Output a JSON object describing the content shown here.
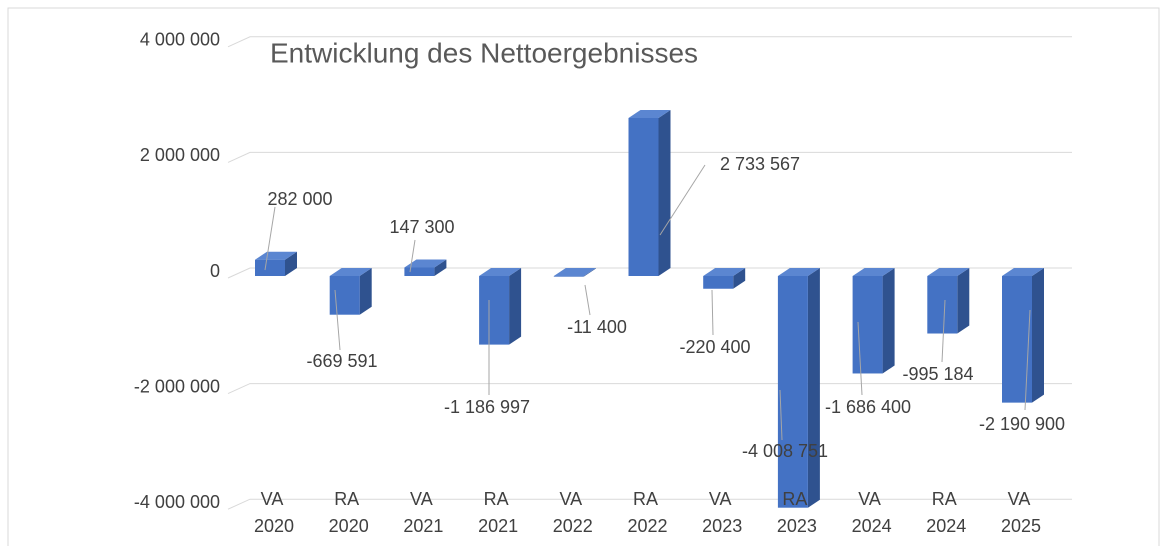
{
  "chart_data": {
    "type": "bar3d",
    "title": "Entwicklung des Nettoergebnisses",
    "categories": [
      "VA 2020",
      "RA 2020",
      "VA 2021",
      "RA 2021",
      "VA 2022",
      "RA 2022",
      "VA 2023",
      "RA 2023",
      "VA 2024",
      "RA 2024",
      "VA 2025"
    ],
    "values": [
      282000,
      -669591,
      147300,
      -1186997,
      -11400,
      2733567,
      -220400,
      -4008751,
      -1686400,
      -995184,
      -2190900
    ],
    "value_labels": [
      "282 000",
      "-669 591",
      "147 300",
      "-1 186 997",
      "-11 400",
      "2 733 567",
      "-220 400",
      "-4 008 751",
      "-1 686 400",
      "-995 184",
      "-2 190 900"
    ],
    "color": "#4472c4",
    "ylim": [
      -4000000,
      4000000
    ],
    "yticks": [
      {
        "value": 4000000,
        "label": "4 000 000"
      },
      {
        "value": 2000000,
        "label": "2 000 000"
      },
      0,
      {
        "value": -2000000,
        "label": "-2 000 000"
      },
      {
        "value": -4000000,
        "label": "-4 000 000"
      }
    ],
    "grid": true
  }
}
